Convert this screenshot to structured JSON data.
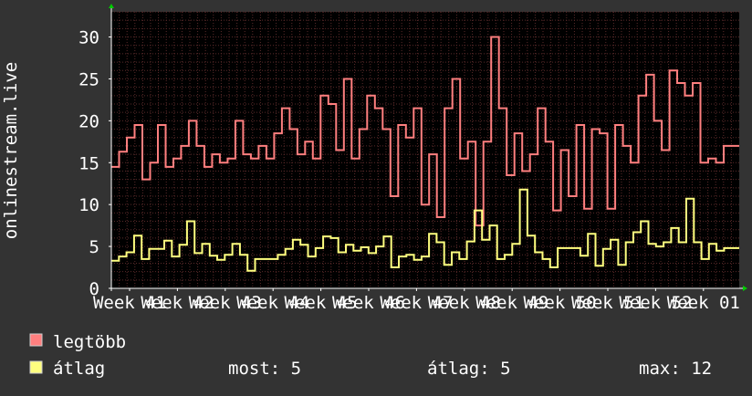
{
  "chart_data": {
    "type": "line",
    "ylabel": "onlinestream.live",
    "ylim": [
      0,
      33
    ],
    "yticks": [
      0,
      5,
      10,
      15,
      20,
      25,
      30
    ],
    "grid": true,
    "x_tick_labels": [
      "Week 41",
      "Week 42",
      "Week 43",
      "Week 44",
      "Week 45",
      "Week 46",
      "Week 47",
      "Week 48",
      "Week 49",
      "Week 50",
      "Week 51",
      "Week 52",
      "Week 01"
    ],
    "series": [
      {
        "name": "legtöbb",
        "color": "#ff7f7f",
        "values": [
          14.5,
          16.3,
          18.0,
          19.5,
          13.0,
          15.0,
          19.5,
          14.5,
          15.5,
          17.0,
          20.0,
          17.0,
          14.5,
          16.0,
          15.0,
          15.5,
          20.0,
          16.0,
          15.5,
          17.0,
          15.5,
          18.5,
          21.5,
          19.0,
          16.0,
          17.5,
          15.5,
          23.0,
          22.0,
          16.5,
          25.0,
          15.5,
          19.0,
          23.0,
          21.5,
          19.0,
          11.0,
          19.5,
          18.0,
          21.5,
          10.0,
          16.0,
          8.5,
          21.5,
          25.0,
          15.5,
          17.5,
          7.5,
          17.5,
          30.0,
          21.5,
          13.5,
          18.5,
          14.0,
          16.0,
          21.5,
          17.5,
          9.3,
          16.5,
          11.0,
          19.5,
          9.5,
          19.0,
          18.5,
          9.5,
          19.5,
          17.0,
          15.0,
          23.0,
          25.5,
          20.0,
          16.5,
          26.0,
          24.5,
          23.0,
          24.5,
          15.0,
          15.5,
          15.0,
          17.0,
          17.0
        ]
      },
      {
        "name": "átlag",
        "color": "#ffff7f",
        "values": [
          3.3,
          3.8,
          4.3,
          6.3,
          3.5,
          4.7,
          4.7,
          5.7,
          3.8,
          5.2,
          8.0,
          4.2,
          5.3,
          3.9,
          3.4,
          4.0,
          5.3,
          4.0,
          2.1,
          3.5,
          3.5,
          3.5,
          4.0,
          4.7,
          5.8,
          5.2,
          3.8,
          4.8,
          6.2,
          6.0,
          4.3,
          5.2,
          4.5,
          4.9,
          4.2,
          5.0,
          6.2,
          2.5,
          3.8,
          4.0,
          3.4,
          3.8,
          6.5,
          5.5,
          2.8,
          4.3,
          3.5,
          5.6,
          9.3,
          5.8,
          7.5,
          3.5,
          4.0,
          5.3,
          11.8,
          6.3,
          4.3,
          3.5,
          2.5,
          4.8,
          4.8,
          4.8,
          3.9,
          6.5,
          2.7,
          4.7,
          5.8,
          2.8,
          5.5,
          6.7,
          8.0,
          5.3,
          5.0,
          5.5,
          7.2,
          5.5,
          10.7,
          5.5,
          3.5,
          5.3,
          4.5,
          4.8,
          4.8
        ]
      }
    ]
  },
  "legend": {
    "items": [
      {
        "label": "legtöbb",
        "color": "#ff7f7f"
      },
      {
        "label": "átlag",
        "color": "#ffff7f"
      }
    ]
  },
  "stats": {
    "most": "most: 5",
    "atlag": "átlag: 5",
    "max": "max: 12"
  },
  "colors": {
    "background": "#333333",
    "plot_background": "#000000",
    "grid": "#5a2a2a",
    "axis": "#ffffff",
    "text": "#ffffff",
    "arrow": "#00cc00"
  }
}
